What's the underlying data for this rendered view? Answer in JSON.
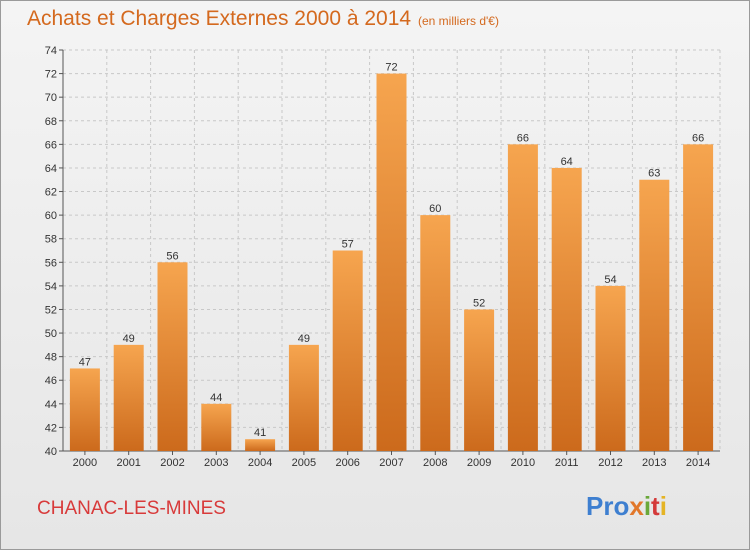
{
  "header": {
    "title": "Achats et Charges Externes 2000 à 2014",
    "subtitle": "(en milliers d'€)"
  },
  "footer": {
    "city": "CHANAC-LES-MINES",
    "logo": [
      "Pro",
      "x",
      "i",
      "t",
      "i"
    ]
  },
  "colors": {
    "bar_top": "#f6a54f",
    "bar_bottom": "#cc6a1c",
    "title": "#d4691e",
    "city": "#d83a3a"
  },
  "chart_data": {
    "type": "bar",
    "title": "Achats et Charges Externes 2000 à 2014",
    "subtitle": "(en milliers d'€)",
    "categories": [
      "2000",
      "2001",
      "2002",
      "2003",
      "2004",
      "2005",
      "2006",
      "2007",
      "2008",
      "2009",
      "2010",
      "2011",
      "2012",
      "2013",
      "2014"
    ],
    "values": [
      47,
      49,
      56,
      44,
      41,
      49,
      57,
      72,
      60,
      52,
      66,
      64,
      54,
      63,
      66
    ],
    "ylim": [
      40,
      74
    ],
    "yticks": [
      40,
      42,
      44,
      46,
      48,
      50,
      52,
      54,
      56,
      58,
      60,
      62,
      64,
      66,
      68,
      70,
      72,
      74
    ],
    "grid": true,
    "data_labels": true
  }
}
